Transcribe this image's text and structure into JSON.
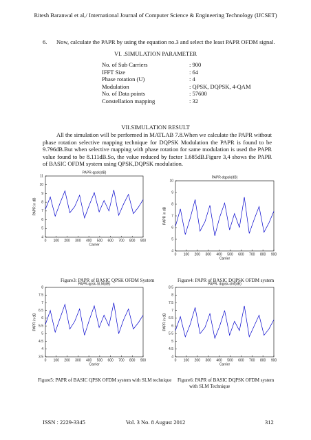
{
  "header": "Ritesh Baranwal et al,/ International Journal of Computer Science & Engineering Technology (IJCSET)",
  "step": {
    "number": "6.",
    "text": "Now, calculate the PAPR by using the equation no.3 and select the least PAPR OFDM signal."
  },
  "parameters": {
    "heading": "VI. .SIMULATION PARAMETER",
    "rows": [
      [
        "No. of Sub Carriers",
        ": 900"
      ],
      [
        "IFFT Size",
        ": 64"
      ],
      [
        "Phase rotation (U)",
        ": 4"
      ],
      [
        "Modulation",
        ": QPSK, DQPSK, 4-QAM"
      ],
      [
        "No. of Data points",
        ": 57600"
      ],
      [
        "Constellation mapping",
        ": 32"
      ]
    ]
  },
  "results": {
    "heading": "VII.SIMULATION RESULT",
    "paragraph": "All the simulation will be performed in MATLAB 7.8.When we calculate the PAPR without phase rotation selective mapping technique for DQPSK Modulation the PAPR is found to be 9.796dB.But when selective mapping with phase rotation for same modulation is used the PAPR value found to be 8.111dB.So, the value reduced by factor 1.685dB.Figure 3,4 shows the PAPR of BASIC OFDM system using QPSK,DQPSK modulation."
  },
  "figures": [
    {
      "chart": {
        "type": "line",
        "title": "PAPR-qpsk(dB)",
        "xlabel": "Carrier",
        "ylabel": "PAPR in dB",
        "color": "#0000cc",
        "x": [
          0,
          45,
          90,
          135,
          180,
          225,
          270,
          315,
          360,
          405,
          450,
          495,
          540,
          585,
          630,
          675,
          720,
          765,
          810,
          855,
          900
        ],
        "values": [
          7.2,
          8.6,
          6.4,
          7.9,
          9.3,
          6.8,
          7.5,
          8.8,
          6.2,
          7.7,
          9.1,
          6.9,
          8.2,
          7.0,
          9.4,
          6.5,
          7.8,
          8.9,
          6.7,
          7.4,
          8.3
        ],
        "xlim": [
          0,
          900
        ],
        "xticks": [
          0,
          100,
          200,
          300,
          400,
          500,
          600,
          700,
          800,
          900
        ],
        "ylim": [
          4,
          11
        ],
        "yticks": [
          4,
          5,
          6,
          7,
          8,
          9,
          10,
          11
        ]
      },
      "caption": [
        "Figure3:  PAPR of BASIC QPSK OFDM System"
      ]
    },
    {
      "chart": {
        "type": "line",
        "title": "PAPR-dqpsk(dB)",
        "xlabel": "Carrier",
        "ylabel": "PAPR in dB",
        "color": "#0000cc",
        "x": [
          0,
          45,
          90,
          135,
          180,
          225,
          270,
          315,
          360,
          405,
          450,
          495,
          540,
          585,
          630,
          675,
          720,
          765,
          810,
          855,
          900
        ],
        "values": [
          6.1,
          7.6,
          5.4,
          6.8,
          8.4,
          5.7,
          6.5,
          7.9,
          5.3,
          6.9,
          8.1,
          5.8,
          7.2,
          6.0,
          8.6,
          5.5,
          6.7,
          7.8,
          5.6,
          6.4,
          7.4
        ],
        "xlim": [
          0,
          900
        ],
        "xticks": [
          0,
          100,
          200,
          300,
          400,
          500,
          600,
          700,
          800,
          900
        ],
        "ylim": [
          4,
          10
        ],
        "yticks": [
          4,
          5,
          6,
          7,
          8,
          9,
          10
        ]
      },
      "caption": [
        "Figure4: PAPR of BASIC DQPSK OFDM system"
      ]
    },
    {
      "chart": {
        "type": "line",
        "title": "PAPR-qpsk-SLM(dB)",
        "xlabel": "Carrier",
        "ylabel": "PAPR in dB",
        "color": "#0000cc",
        "x": [
          0,
          45,
          90,
          135,
          180,
          225,
          270,
          315,
          360,
          405,
          450,
          495,
          540,
          585,
          630,
          675,
          720,
          765,
          810,
          855,
          900
        ],
        "values": [
          5.6,
          6.5,
          5.1,
          6.0,
          6.9,
          5.3,
          5.8,
          6.6,
          4.9,
          5.9,
          6.8,
          5.4,
          6.2,
          5.5,
          7.0,
          5.0,
          5.9,
          6.6,
          5.3,
          5.7,
          6.2
        ],
        "xlim": [
          0,
          900
        ],
        "xticks": [
          0,
          100,
          200,
          300,
          400,
          500,
          600,
          700,
          800,
          900
        ],
        "ylim": [
          3.5,
          8
        ],
        "yticks": [
          3.5,
          4,
          4.5,
          5,
          5.5,
          6,
          6.5,
          7,
          7.5,
          8
        ]
      },
      "caption": [
        "Figure5: PAPR of BASIC QPSK OFDM system with SLM technique"
      ]
    },
    {
      "chart": {
        "type": "line",
        "title": "PAPR- dqpsk-slm(dB)",
        "xlabel": "Carrier",
        "ylabel": "PAPR in dB",
        "color": "#0000cc",
        "x": [
          0,
          45,
          90,
          135,
          180,
          225,
          270,
          315,
          360,
          405,
          450,
          495,
          540,
          585,
          630,
          675,
          720,
          765,
          810,
          855,
          900
        ],
        "values": [
          5.7,
          6.6,
          5.3,
          6.1,
          7.2,
          5.5,
          5.9,
          6.8,
          5.2,
          6.0,
          7.0,
          5.4,
          6.3,
          5.7,
          7.3,
          5.3,
          6.0,
          6.7,
          5.4,
          5.8,
          6.4
        ],
        "xlim": [
          0,
          900
        ],
        "xticks": [
          0,
          100,
          200,
          300,
          400,
          500,
          600,
          700,
          800,
          900
        ],
        "ylim": [
          4,
          8.5
        ],
        "yticks": [
          4,
          4.5,
          5,
          5.5,
          6,
          6.5,
          7,
          7.5,
          8,
          8.5
        ]
      },
      "caption": [
        "Figure6: PAPR of BASIC DQPSK OFDM system",
        "with SLM Technique"
      ]
    }
  ],
  "footer": {
    "issn": "ISSN : 2229-3345",
    "volume": "Vol. 3 No. 8 August 2012",
    "page": "312"
  }
}
